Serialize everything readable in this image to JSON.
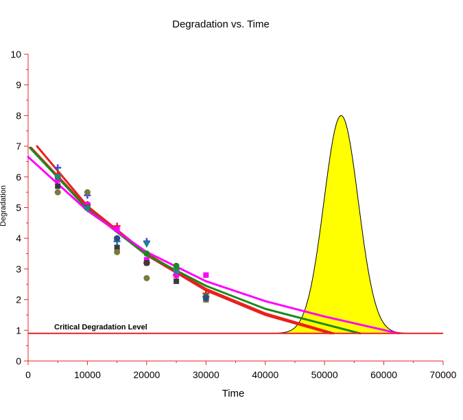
{
  "chart_data": {
    "type": "scatter",
    "title": "Degradation vs. Time",
    "xlabel": "Time",
    "ylabel": "Degradation",
    "xlim": [
      0,
      70000
    ],
    "ylim": [
      0,
      10
    ],
    "x_ticks": [
      "0",
      "10000",
      "20000",
      "30000",
      "40000",
      "50000",
      "60000",
      "70000"
    ],
    "y_ticks": [
      "0",
      "1",
      "2",
      "3",
      "4",
      "5",
      "6",
      "7",
      "8",
      "9",
      "10"
    ],
    "reference_line": {
      "label": "Critical Degradation Level",
      "y": 0.9,
      "color": "#e8201f"
    },
    "points": [
      {
        "marker": "plus",
        "color": "#3a4fd0",
        "x": [
          5000,
          10000,
          15000,
          20000,
          25000,
          30000
        ],
        "y": [
          6.3,
          5.4,
          3.9,
          3.9,
          3.0,
          2.1
        ]
      },
      {
        "marker": "plus",
        "color": "#e8201f",
        "x": [
          5000,
          10000,
          15000,
          20000,
          25000,
          30000
        ],
        "y": [
          6.1,
          5.1,
          4.4,
          3.2,
          2.8,
          2.2
        ]
      },
      {
        "marker": "square",
        "color": "#ff00ff",
        "x": [
          5000,
          10000,
          15000,
          20000,
          25000,
          30000
        ],
        "y": [
          5.9,
          5.1,
          4.3,
          3.3,
          2.8,
          2.8
        ]
      },
      {
        "marker": "square",
        "color": "#3a3a3a",
        "x": [
          5000,
          10000,
          15000,
          20000,
          25000,
          30000
        ],
        "y": [
          5.7,
          5.0,
          3.7,
          3.2,
          2.6,
          2.0
        ]
      },
      {
        "marker": "circle",
        "color": "#7a7a3a",
        "x": [
          5000,
          10000,
          15000,
          20000,
          25000,
          30000
        ],
        "y": [
          5.5,
          5.5,
          3.55,
          2.7,
          2.95,
          2.0
        ]
      },
      {
        "marker": "circle",
        "color": "#1a8a1a",
        "x": [
          5000,
          10000,
          15000,
          20000,
          25000,
          30000
        ],
        "y": [
          6.0,
          5.0,
          4.0,
          3.5,
          3.1,
          2.1
        ]
      },
      {
        "marker": "triangle-down",
        "color": "#1a8a8a",
        "x": [
          5000,
          10000,
          15000,
          20000,
          25000
        ],
        "y": [
          6.0,
          4.95,
          3.9,
          3.8,
          2.9
        ]
      },
      {
        "marker": "circle",
        "color": "#2a4a8a",
        "x": [
          15000,
          30000
        ],
        "y": [
          4.0,
          2.05
        ]
      }
    ],
    "fit_lines": [
      {
        "color": "#e8201f",
        "x": [
          1500,
          10000,
          20000,
          30000,
          40000,
          51500
        ],
        "y": [
          7.0,
          5.05,
          3.5,
          2.35,
          1.55,
          0.9
        ]
      },
      {
        "color": "#e8201f",
        "x": [
          500,
          10000,
          20000,
          30000,
          40000,
          51000
        ],
        "y": [
          6.95,
          5.0,
          3.45,
          2.3,
          1.5,
          0.9
        ]
      },
      {
        "color": "#1a8a1a",
        "x": [
          300,
          10000,
          20000,
          30000,
          40000,
          50000,
          56000
        ],
        "y": [
          6.95,
          4.95,
          3.45,
          2.45,
          1.7,
          1.2,
          0.9
        ]
      },
      {
        "color": "#ff00ff",
        "x": [
          0,
          10000,
          20000,
          30000,
          40000,
          50000,
          62500
        ],
        "y": [
          6.65,
          4.9,
          3.55,
          2.6,
          1.95,
          1.45,
          0.9
        ]
      }
    ],
    "distribution": {
      "color": "#ffff00",
      "stroke": "#000000",
      "baseline": 0.9,
      "mean": 52800,
      "sd": 2900,
      "peak": 8.0,
      "xlim": [
        42000,
        66000
      ]
    }
  }
}
